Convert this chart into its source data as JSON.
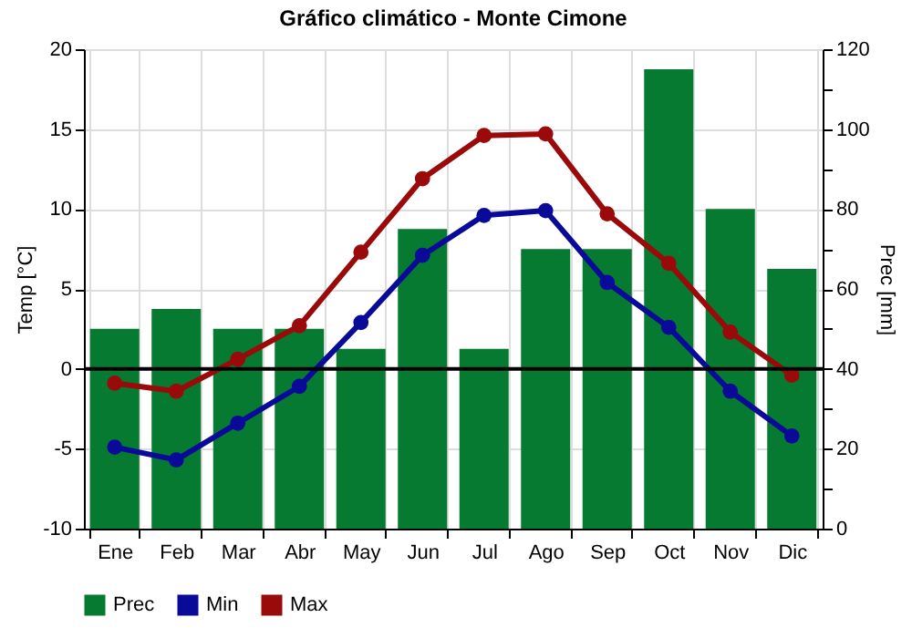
{
  "chart_data": {
    "type": "bar",
    "title": "Gráfico climático - Monte Cimone",
    "ylabel": "Temp [°C]",
    "y2label": "Prec [mm]",
    "categories": [
      "Ene",
      "Feb",
      "Mar",
      "Abr",
      "May",
      "Jun",
      "Jul",
      "Ago",
      "Sep",
      "Oct",
      "Nov",
      "Dic"
    ],
    "series": [
      {
        "name": "Prec",
        "axis": "y2",
        "color": "#067a30",
        "values": [
          50,
          55,
          50,
          50,
          45,
          75,
          45,
          70,
          70,
          115,
          80,
          65
        ]
      },
      {
        "name": "Min",
        "type": "line",
        "color": "#0a0a99",
        "values": [
          -4.9,
          -5.7,
          -3.4,
          -1.1,
          2.9,
          7.1,
          9.6,
          9.9,
          5.4,
          2.6,
          -1.4,
          -4.2
        ]
      },
      {
        "name": "Max",
        "type": "line",
        "color": "#9a0a0a",
        "values": [
          -0.9,
          -1.4,
          0.6,
          2.7,
          7.3,
          11.9,
          14.6,
          14.7,
          9.7,
          6.6,
          2.3,
          -0.4
        ]
      }
    ],
    "ylim": [
      -10,
      20
    ],
    "yticks": [
      -10,
      -5,
      0,
      5,
      10,
      15,
      20
    ],
    "y2lim": [
      0,
      120
    ],
    "y2ticks": [
      0,
      {
        "value": 10,
        "label": null
      },
      20,
      {
        "value": 30,
        "label": null
      },
      40,
      {
        "value": 50,
        "label": null
      },
      60,
      {
        "value": 70,
        "label": null
      },
      80,
      {
        "value": 90,
        "label": null
      },
      100,
      {
        "value": 110,
        "label": null
      },
      120
    ],
    "ref_lines": [
      {
        "axis": "y",
        "value": 0,
        "color": "#000000"
      }
    ],
    "grid": true,
    "legend": "bottom",
    "marker": "circle",
    "line_style": "solid"
  }
}
